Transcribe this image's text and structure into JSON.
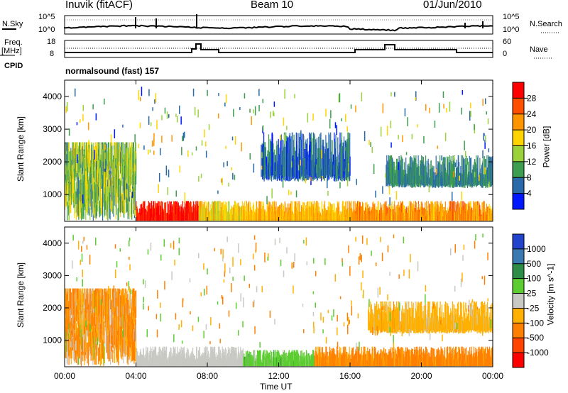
{
  "header": {
    "station": "Inuvik (fitACF)",
    "beam": "Beam 10",
    "date": "01/Jun/2010"
  },
  "top_panel": {
    "nsky_label": "N.Sky",
    "nsky_tick_top": "10^5",
    "nsky_tick_bottom": "10^0",
    "nsearch_label": "N.Search",
    "nsearch_tick_top": "10^5",
    "nsearch_tick_bottom": "10^0",
    "freq_label": "Freq.",
    "freq_unit": "[MHz]",
    "freq_tick_top": "18",
    "freq_tick_bottom": "8",
    "nave_label": "Nave",
    "nave_tick_top": "60",
    "nave_tick_bottom": "0",
    "cpid_label": "CPID",
    "cpid_value": "normalsound (fast) 157"
  },
  "chart_data": [
    {
      "type": "heatmap",
      "title": "",
      "xlabel": "",
      "ylabel": "Slant Range [km]",
      "xlim": [
        0,
        24
      ],
      "ylim": [
        180,
        4500
      ],
      "x_ticks": [
        "00:00",
        "04:00",
        "08:00",
        "12:00",
        "16:00",
        "20:00",
        "00:00"
      ],
      "y_ticks": [
        1000,
        2000,
        3000,
        4000
      ],
      "colorbar": {
        "label": "Power [dB]",
        "ticks": [
          "28",
          "24",
          "20",
          "16",
          "12",
          "8",
          "4"
        ],
        "colors": [
          "#ff0000",
          "#ff5000",
          "#ff9600",
          "#ffd400",
          "#9ad23c",
          "#3c9e4e",
          "#2a6aa8",
          "#0018ff"
        ]
      },
      "bands": [
        {
          "t0": 0.0,
          "t1": 4.0,
          "r0": 200,
          "r1": 2600,
          "level": "mixed"
        },
        {
          "t0": 4.0,
          "t1": 7.5,
          "r0": 200,
          "r1": 800,
          "level": 30
        },
        {
          "t0": 7.5,
          "t1": 10.0,
          "r0": 200,
          "r1": 800,
          "level": 18
        },
        {
          "t0": 10.0,
          "t1": 16.0,
          "r0": 200,
          "r1": 800,
          "level": 20
        },
        {
          "t0": 11.0,
          "t1": 16.0,
          "r0": 1400,
          "r1": 2900,
          "level": 6
        },
        {
          "t0": 16.0,
          "t1": 24.0,
          "r0": 200,
          "r1": 800,
          "level": 22
        },
        {
          "t0": 18.0,
          "t1": 24.0,
          "r0": 1200,
          "r1": 2200,
          "level": 8
        }
      ]
    },
    {
      "type": "heatmap",
      "title": "",
      "xlabel": "Time UT",
      "ylabel": "Slant Range [km]",
      "xlim": [
        0,
        24
      ],
      "ylim": [
        180,
        4500
      ],
      "x_ticks": [
        "00:00",
        "04:00",
        "08:00",
        "12:00",
        "16:00",
        "20:00",
        "00:00"
      ],
      "y_ticks": [
        1000,
        2000,
        3000,
        4000
      ],
      "colorbar": {
        "label": "Velocity [m s^-1]",
        "ticks": [
          "1000",
          "500",
          "100",
          "25",
          "-25",
          "-100",
          "-500",
          "-1000"
        ],
        "colors": [
          "#2244cc",
          "#3a7ab0",
          "#2e8c46",
          "#5ccd30",
          "#c8c8c4",
          "#ffb000",
          "#ff8000",
          "#ff4400",
          "#ff0000"
        ]
      },
      "bands": [
        {
          "t0": 0.0,
          "t1": 4.0,
          "r0": 200,
          "r1": 2600,
          "level": "mixed"
        },
        {
          "t0": 4.0,
          "t1": 10.0,
          "r0": 200,
          "r1": 800,
          "level": "ground"
        },
        {
          "t0": 10.0,
          "t1": 14.0,
          "r0": 200,
          "r1": 700,
          "level": 60
        },
        {
          "t0": 14.0,
          "t1": 24.0,
          "r0": 200,
          "r1": 800,
          "level": -200
        },
        {
          "t0": 17.0,
          "t1": 24.0,
          "r0": 1200,
          "r1": 2200,
          "level": -60
        }
      ]
    }
  ]
}
